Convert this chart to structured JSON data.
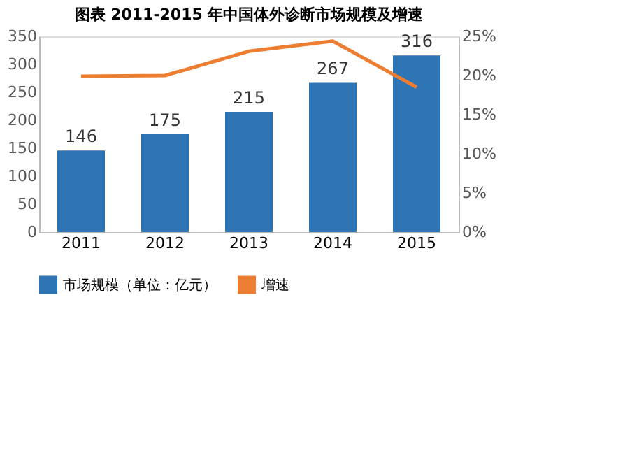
{
  "chart_data": {
    "type": "bar",
    "title": "图表    2011-2015 年中国体外诊断市场规模及增速",
    "categories": [
      "2011",
      "2012",
      "2013",
      "2014",
      "2015"
    ],
    "series": [
      {
        "name": "市场规模（单位：亿元）",
        "color": "#2e75b6",
        "values": [
          146,
          175,
          215,
          267,
          316
        ],
        "value_labels": [
          "146",
          "175",
          "215",
          "267",
          "316"
        ]
      },
      {
        "name": "增速",
        "type": "line",
        "axis": "y2",
        "color": "#ed7d31",
        "values": [
          19.9,
          20.0,
          23.1,
          24.4,
          18.5
        ]
      }
    ],
    "ylim": [
      0,
      350
    ],
    "yticks": [
      0,
      50,
      100,
      150,
      200,
      250,
      300,
      350
    ],
    "y2lim": [
      0,
      25
    ],
    "y2ticks": [
      {
        "value": 0,
        "label": "0%"
      },
      {
        "value": 5,
        "label": "5%"
      },
      {
        "value": 10,
        "label": "10%"
      },
      {
        "value": 15,
        "label": "15%"
      },
      {
        "value": 20,
        "label": "20%"
      },
      {
        "value": 25,
        "label": "25%"
      }
    ],
    "grid": false,
    "legend": "bottom",
    "marker": "none",
    "line_style": "solid"
  }
}
